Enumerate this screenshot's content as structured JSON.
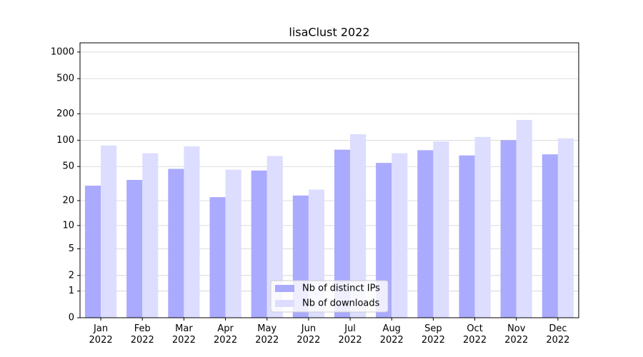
{
  "chart_data": {
    "type": "bar",
    "title": "lisaClust 2022",
    "categories": [
      "Jan\n2022",
      "Feb\n2022",
      "Mar\n2022",
      "Apr\n2022",
      "May\n2022",
      "Jun\n2022",
      "Jul\n2022",
      "Aug\n2022",
      "Sep\n2022",
      "Oct\n2022",
      "Nov\n2022",
      "Dec\n2022"
    ],
    "series": [
      {
        "name": "Nb of distinct IPs",
        "color": "#aaaaff",
        "values": [
          30,
          35,
          47,
          22,
          45,
          23,
          78,
          55,
          77,
          67,
          100,
          69
        ]
      },
      {
        "name": "Nb of downloads",
        "color": "#ddddff",
        "values": [
          87,
          71,
          85,
          46,
          66,
          27,
          117,
          71,
          97,
          109,
          170,
          105
        ]
      }
    ],
    "yscale": "log1p",
    "ylim": [
      0,
      1270
    ],
    "yticks": [
      0,
      1,
      2,
      5,
      10,
      20,
      50,
      100,
      200,
      500,
      1000
    ],
    "grid": true,
    "legend": "lower center"
  }
}
